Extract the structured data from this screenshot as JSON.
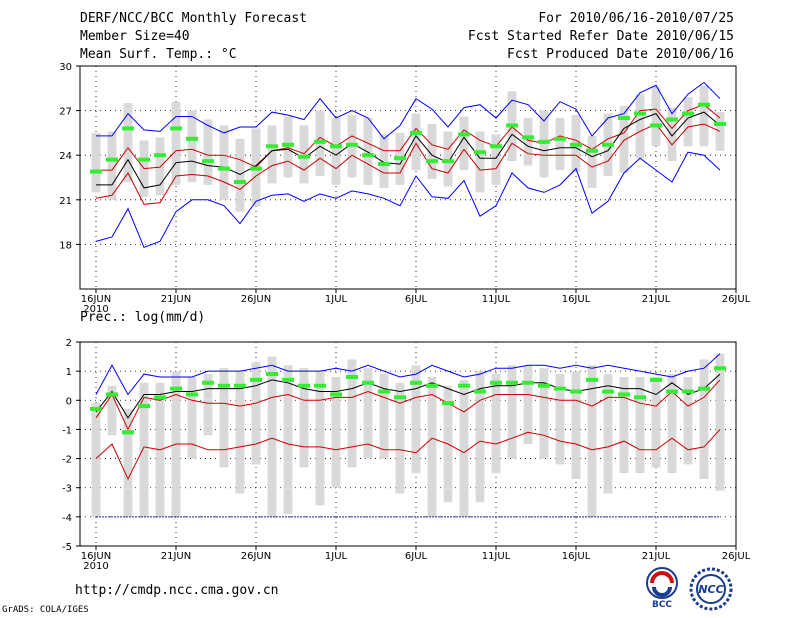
{
  "header": {
    "title": "DERF/NCC/BCC Monthly Forecast",
    "member_size": "Member Size=40",
    "variable": "Mean Surf. Temp.: °C",
    "period": "For 2010/06/16-2010/07/25",
    "started": "Fcst Started Refer Date 2010/06/15",
    "produced": "Fcst Produced Date 2010/06/16"
  },
  "footer": {
    "url": "http://cmdp.ncc.cma.gov.cn",
    "grads": "GrADS: COLA/IGES",
    "bcc_logo": "BCC",
    "ncc_logo": "NCC"
  },
  "colors": {
    "blue": "#0000ff",
    "red": "#cc0000",
    "black": "#000000",
    "green": "#33ee33",
    "bar": "#d9d9d9"
  },
  "chart_data": [
    {
      "type": "line",
      "title": "Mean Surf. Temp.: °C",
      "ylim": [
        15,
        30
      ],
      "yticks": [
        18,
        21,
        24,
        27,
        30
      ],
      "xlim": [
        0,
        40
      ],
      "xticks": [
        0,
        5,
        10,
        15,
        20,
        25,
        30,
        35,
        40
      ],
      "xticklabels": [
        "16JUN",
        "21JUN",
        "26JUN",
        "1JUL",
        "6JUL",
        "11JUL",
        "16JUL",
        "21JUL",
        "26JUL"
      ],
      "xsublabel": "2010",
      "series": [
        {
          "name": "max",
          "color": "#0000ff",
          "values": [
            25.3,
            25.3,
            26.8,
            25.7,
            25.6,
            26.6,
            26.6,
            26.0,
            25.5,
            25.9,
            25.9,
            26.9,
            26.7,
            26.4,
            27.8,
            26.5,
            27.0,
            26.5,
            25.1,
            26.0,
            27.8,
            27.1,
            25.9,
            27.2,
            27.4,
            26.5,
            27.7,
            27.4,
            26.3,
            27.6,
            27.1,
            25.3,
            26.5,
            26.8,
            28.2,
            28.7,
            26.8,
            28.1,
            28.9,
            27.8
          ]
        },
        {
          "name": "upper",
          "color": "#cc0000",
          "values": [
            23.0,
            23.0,
            24.5,
            23.1,
            23.2,
            24.3,
            24.4,
            24.0,
            24.0,
            23.7,
            23.2,
            24.3,
            24.5,
            24.1,
            25.2,
            24.6,
            25.3,
            24.8,
            24.3,
            24.3,
            25.8,
            24.7,
            24.4,
            25.7,
            25.0,
            24.6,
            25.9,
            25.0,
            24.8,
            25.3,
            25.0,
            24.4,
            25.1,
            25.5,
            27.0,
            27.1,
            25.8,
            27.0,
            27.4,
            26.5
          ]
        },
        {
          "name": "mean",
          "color": "#000000",
          "values": [
            22.0,
            22.0,
            23.7,
            21.8,
            22.0,
            23.5,
            23.6,
            23.3,
            23.2,
            22.7,
            23.3,
            24.3,
            24.4,
            23.8,
            24.6,
            24.0,
            24.8,
            24.2,
            23.5,
            23.4,
            25.3,
            24.0,
            23.5,
            25.2,
            23.8,
            23.8,
            25.4,
            24.6,
            24.3,
            24.5,
            24.5,
            23.9,
            24.3,
            25.8,
            26.4,
            26.8,
            25.3,
            26.5,
            26.9,
            26.0
          ]
        },
        {
          "name": "lower",
          "color": "#cc0000",
          "values": [
            21.1,
            21.3,
            22.8,
            20.7,
            20.8,
            22.6,
            22.7,
            22.6,
            22.2,
            21.7,
            22.6,
            23.3,
            23.6,
            23.0,
            23.8,
            23.1,
            24.0,
            23.4,
            22.8,
            22.8,
            24.8,
            23.1,
            22.8,
            24.4,
            23.0,
            23.1,
            24.8,
            24.1,
            24.0,
            24.0,
            24.0,
            23.2,
            23.6,
            25.0,
            25.6,
            26.1,
            24.7,
            25.9,
            26.1,
            25.6
          ]
        },
        {
          "name": "min",
          "color": "#0000ff",
          "values": [
            18.2,
            18.5,
            20.4,
            17.8,
            18.2,
            20.2,
            21.0,
            21.0,
            20.6,
            19.4,
            20.9,
            21.3,
            21.4,
            20.9,
            21.4,
            21.1,
            21.6,
            21.4,
            21.1,
            20.6,
            22.6,
            21.2,
            21.1,
            22.3,
            19.9,
            20.6,
            22.8,
            21.8,
            21.5,
            22.0,
            23.1,
            20.1,
            20.9,
            22.8,
            23.8,
            23.0,
            22.2,
            24.2,
            24.0,
            23.0
          ]
        }
      ],
      "obs": [
        22.9,
        23.7,
        25.8,
        23.7,
        24.0,
        25.8,
        25.1,
        23.6,
        23.1,
        22.2,
        23.1,
        24.6,
        24.7,
        23.9,
        24.9,
        24.6,
        24.7,
        24.0,
        23.4,
        23.8,
        25.5,
        23.6,
        23.6,
        25.4,
        24.2,
        24.6,
        26.0,
        25.2,
        24.9,
        25.1,
        24.7,
        24.3,
        24.7,
        26.5,
        26.8,
        26.0,
        26.4,
        26.8,
        27.4,
        26.1
      ],
      "boxes": [
        [
          21.5,
          25.5
        ],
        [
          21.0,
          25.6
        ],
        [
          22.2,
          27.5
        ],
        [
          21.2,
          25.0
        ],
        [
          21.3,
          25.2
        ],
        [
          22.0,
          27.6
        ],
        [
          22.2,
          27.0
        ],
        [
          22.0,
          26.4
        ],
        [
          21.0,
          26.0
        ],
        [
          20.2,
          25.1
        ],
        [
          20.6,
          25.8
        ],
        [
          22.1,
          26.0
        ],
        [
          22.5,
          26.6
        ],
        [
          22.1,
          26.0
        ],
        [
          22.6,
          27.0
        ],
        [
          22.0,
          26.5
        ],
        [
          22.5,
          26.7
        ],
        [
          22.0,
          26.5
        ],
        [
          21.8,
          25.4
        ],
        [
          22.0,
          25.5
        ],
        [
          23.0,
          26.8
        ],
        [
          22.4,
          26.1
        ],
        [
          21.9,
          25.6
        ],
        [
          23.0,
          26.6
        ],
        [
          21.5,
          25.6
        ],
        [
          22.0,
          25.4
        ],
        [
          23.6,
          28.3
        ],
        [
          23.3,
          26.5
        ],
        [
          22.5,
          27.0
        ],
        [
          23.0,
          26.5
        ],
        [
          22.9,
          26.7
        ],
        [
          21.8,
          25.3
        ],
        [
          22.6,
          26.8
        ],
        [
          22.8,
          27.3
        ],
        [
          23.8,
          28.1
        ],
        [
          24.6,
          28.6
        ],
        [
          23.6,
          27.2
        ],
        [
          24.6,
          27.9
        ],
        [
          24.6,
          28.7
        ],
        [
          24.3,
          26.9
        ]
      ]
    },
    {
      "type": "line",
      "title": "Prec.: log(mm/d)",
      "ylim": [
        -5,
        2
      ],
      "yticks": [
        -5,
        -4,
        -3,
        -2,
        -1,
        0,
        1,
        2
      ],
      "xlim": [
        0,
        40
      ],
      "xticks": [
        0,
        5,
        10,
        15,
        20,
        25,
        30,
        35,
        40
      ],
      "xticklabels": [
        "16JUN",
        "21JUN",
        "26JUN",
        "1JUL",
        "6JUL",
        "11JUL",
        "16JUL",
        "21JUL",
        "26JUL"
      ],
      "xsublabel": "2010",
      "series": [
        {
          "name": "max",
          "color": "#0000ff",
          "values": [
            0.2,
            1.2,
            0.2,
            0.9,
            0.8,
            0.8,
            0.8,
            1.0,
            1.0,
            1.0,
            1.1,
            1.2,
            1.0,
            1.0,
            1.0,
            1.1,
            1.0,
            1.2,
            1.0,
            0.8,
            0.9,
            1.2,
            1.0,
            0.8,
            0.9,
            1.1,
            1.1,
            1.2,
            1.2,
            1.1,
            1.2,
            1.1,
            1.2,
            1.1,
            1.0,
            0.9,
            0.8,
            1.0,
            1.1,
            1.6
          ]
        },
        {
          "name": "upper",
          "color": "#cc0000",
          "values": [
            -0.6,
            0.2,
            -1.0,
            0.1,
            0.0,
            0.2,
            0.0,
            -0.1,
            -0.1,
            -0.2,
            -0.1,
            0.1,
            0.2,
            0.0,
            0.0,
            0.1,
            0.1,
            0.3,
            0.1,
            -0.1,
            0.1,
            0.2,
            -0.1,
            -0.4,
            0.0,
            0.2,
            0.2,
            0.2,
            0.1,
            0.0,
            0.0,
            -0.2,
            0.1,
            0.1,
            -0.1,
            -0.2,
            0.3,
            -0.2,
            0.1,
            0.7
          ]
        },
        {
          "name": "mean",
          "color": "#000000",
          "values": [
            -0.4,
            0.3,
            -0.6,
            0.2,
            0.2,
            0.3,
            0.3,
            0.4,
            0.4,
            0.4,
            0.5,
            0.7,
            0.6,
            0.4,
            0.3,
            0.3,
            0.4,
            0.6,
            0.4,
            0.3,
            0.4,
            0.6,
            0.4,
            0.2,
            0.4,
            0.5,
            0.5,
            0.6,
            0.6,
            0.4,
            0.3,
            0.4,
            0.5,
            0.4,
            0.4,
            0.2,
            0.6,
            0.2,
            0.4,
            0.9
          ]
        },
        {
          "name": "lower",
          "color": "#cc0000",
          "values": [
            -2.0,
            -1.5,
            -2.7,
            -1.6,
            -1.7,
            -1.5,
            -1.5,
            -1.7,
            -1.7,
            -1.6,
            -1.5,
            -1.3,
            -1.5,
            -1.6,
            -1.6,
            -1.7,
            -1.6,
            -1.5,
            -1.7,
            -1.7,
            -1.8,
            -1.3,
            -1.5,
            -1.8,
            -1.4,
            -1.5,
            -1.3,
            -1.1,
            -1.2,
            -1.4,
            -1.5,
            -1.7,
            -1.6,
            -1.4,
            -1.7,
            -1.7,
            -1.3,
            -1.7,
            -1.6,
            -1.0
          ]
        }
      ],
      "obs": [
        -0.3,
        0.2,
        -1.1,
        -0.2,
        0.1,
        0.4,
        0.2,
        0.6,
        0.5,
        0.5,
        0.7,
        0.9,
        0.7,
        0.5,
        0.5,
        0.2,
        0.8,
        0.6,
        0.3,
        0.1,
        0.6,
        0.5,
        -0.1,
        0.5,
        0.3,
        0.6,
        0.6,
        0.6,
        0.5,
        0.4,
        0.3,
        0.7,
        0.3,
        0.2,
        0.1,
        0.7,
        0.3,
        0.3,
        0.4,
        1.1
      ],
      "floor_value": -4,
      "boxes": [
        [
          -4.0,
          -0.1
        ],
        [
          -1.2,
          0.5
        ],
        [
          -4.0,
          -0.3
        ],
        [
          -4.0,
          0.6
        ],
        [
          -4.0,
          0.6
        ],
        [
          -4.0,
          1.0
        ],
        [
          -2.0,
          0.8
        ],
        [
          -1.2,
          0.9
        ],
        [
          -2.3,
          1.1
        ],
        [
          -3.2,
          1.0
        ],
        [
          -2.2,
          1.3
        ],
        [
          -4.0,
          1.5
        ],
        [
          -3.9,
          1.2
        ],
        [
          -2.3,
          1.1
        ],
        [
          -3.6,
          1.0
        ],
        [
          -3.0,
          0.8
        ],
        [
          -2.3,
          1.4
        ],
        [
          -2.0,
          1.1
        ],
        [
          -2.0,
          0.9
        ],
        [
          -3.2,
          0.6
        ],
        [
          -2.5,
          1.2
        ],
        [
          -4.0,
          0.8
        ],
        [
          -3.5,
          0.5
        ],
        [
          -4.0,
          0.7
        ],
        [
          -3.5,
          1.0
        ],
        [
          -2.5,
          0.9
        ],
        [
          -2.0,
          1.2
        ],
        [
          -1.5,
          1.2
        ],
        [
          -2.0,
          1.1
        ],
        [
          -2.2,
          0.9
        ],
        [
          -2.7,
          1.0
        ],
        [
          -4.0,
          1.2
        ],
        [
          -3.2,
          0.9
        ],
        [
          -2.5,
          0.8
        ],
        [
          -2.5,
          0.8
        ],
        [
          -2.3,
          0.8
        ],
        [
          -2.5,
          0.9
        ],
        [
          -2.2,
          0.8
        ],
        [
          -2.7,
          1.4
        ],
        [
          -3.1,
          1.6
        ]
      ]
    }
  ]
}
